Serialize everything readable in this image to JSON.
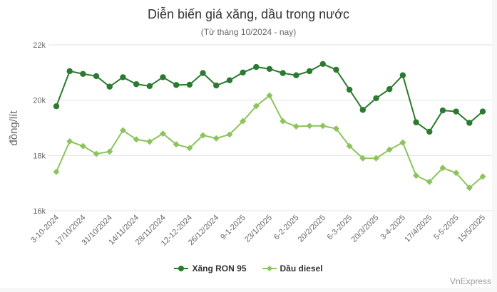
{
  "chart_data": {
    "type": "line",
    "title": "Diễn biến giá xăng, dầu trong nước",
    "subtitle": "(Từ tháng 10/2024 - nay)",
    "xlabel": "",
    "ylabel": "đồng/lít",
    "ylim": [
      16000,
      22000
    ],
    "yticks": [
      16000,
      18000,
      20000,
      22000
    ],
    "ytick_labels": [
      "16k",
      "18k",
      "20k",
      "22k"
    ],
    "grid": true,
    "legend_position": "bottom",
    "categories": [
      "3-10-2024",
      "",
      "17/10/2024",
      "",
      "31/10/2024",
      "",
      "14/11/2024",
      "",
      "28/11/2024",
      "",
      "12-12-2024",
      "",
      "26/12/2024",
      "",
      "9-1-2025",
      "",
      "23/1/2025",
      "",
      "6-2-2025",
      "",
      "20/2/2025",
      "",
      "6-3-2025",
      "",
      "20/3/2025",
      "",
      "3-4-2025",
      "",
      "17/4/2025",
      "",
      "5-5-2025",
      "",
      "15/5/2025"
    ],
    "series": [
      {
        "name": "Xăng RON 95",
        "color": "#2b7a2f",
        "marker": "circle",
        "values": [
          19780,
          21050,
          20950,
          20870,
          20490,
          20830,
          20580,
          20510,
          20830,
          20550,
          20560,
          20980,
          20530,
          20720,
          21000,
          21200,
          21130,
          20980,
          20900,
          21050,
          21310,
          21100,
          20380,
          19650,
          20070,
          20400,
          20900,
          19200,
          18860,
          19630,
          19590,
          19180,
          19590
        ]
      },
      {
        "name": "Dầu diesel",
        "color": "#8cc45c",
        "marker": "diamond",
        "values": [
          17410,
          18510,
          18340,
          18060,
          18140,
          18910,
          18580,
          18500,
          18790,
          18400,
          18270,
          18730,
          18620,
          18760,
          19240,
          19790,
          20170,
          19240,
          19050,
          19070,
          19070,
          18970,
          18340,
          17900,
          17900,
          18210,
          18470,
          17270,
          17050,
          17550,
          17370,
          16830,
          17240
        ]
      }
    ]
  },
  "credit": "VnExpress"
}
